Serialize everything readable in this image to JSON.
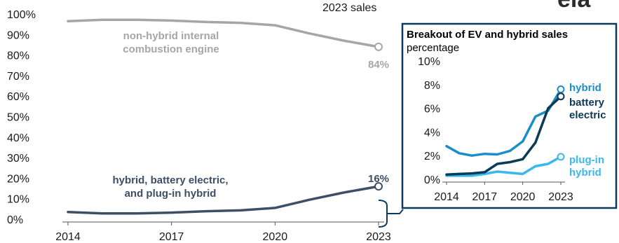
{
  "header": {
    "sales_label": "2023 sales",
    "logo_text": "eia"
  },
  "chart_data": [
    {
      "type": "line",
      "title": "",
      "xlabel": "",
      "ylabel": "",
      "x": [
        2014,
        2015,
        2016,
        2017,
        2018,
        2019,
        2020,
        2021,
        2022,
        2023
      ],
      "x_ticks": [
        "2014",
        "2017",
        "2020",
        "2023"
      ],
      "y_ticks": [
        "0%",
        "10%",
        "20%",
        "30%",
        "40%",
        "50%",
        "60%",
        "70%",
        "80%",
        "90%",
        "100%"
      ],
      "ylim": [
        0,
        100
      ],
      "grid": false,
      "series": [
        {
          "name": "non-hybrid internal combustion engine",
          "label_lines": [
            "non-hybrid internal",
            "combustion engine"
          ],
          "color": "#a6a6a6",
          "values": [
            96.5,
            97.2,
            97.2,
            96.8,
            96.1,
            95.7,
            94.5,
            90.5,
            87.0,
            84.0
          ],
          "end_label": "84%"
        },
        {
          "name": "hybrid, battery electric, and plug-in hybrid",
          "label_lines": [
            "hybrid, battery electric,",
            "and plug-in hybrid"
          ],
          "color": "#3d4f66",
          "values": [
            3.5,
            2.8,
            2.8,
            3.2,
            3.9,
            4.3,
            5.5,
            9.5,
            13.0,
            16.0
          ],
          "end_label": "16%"
        }
      ]
    },
    {
      "type": "line",
      "title": "Breakout of EV and hybrid sales",
      "ylabel": "percentage",
      "xlabel": "",
      "x": [
        2014,
        2015,
        2016,
        2017,
        2018,
        2019,
        2020,
        2021,
        2022,
        2023
      ],
      "x_ticks": [
        "2014",
        "2017",
        "2020",
        "2023"
      ],
      "y_ticks": [
        "0%",
        "2%",
        "4%",
        "6%",
        "8%",
        "10%"
      ],
      "ylim": [
        0,
        10
      ],
      "grid": false,
      "series": [
        {
          "name": "hybrid",
          "label_lines": [
            "hybrid"
          ],
          "color": "#1b8dc8",
          "values": [
            2.8,
            2.2,
            2.0,
            2.15,
            2.1,
            2.4,
            3.2,
            5.3,
            5.8,
            7.6
          ]
        },
        {
          "name": "battery electric",
          "label_lines": [
            "battery",
            "electric"
          ],
          "color": "#0b3a57",
          "values": [
            0.4,
            0.45,
            0.5,
            0.6,
            1.3,
            1.45,
            1.7,
            3.1,
            6.0,
            7.0
          ]
        },
        {
          "name": "plug-in hybrid",
          "label_lines": [
            "plug-in",
            "hybrid"
          ],
          "color": "#3ab8ec",
          "values": [
            0.3,
            0.3,
            0.3,
            0.45,
            0.65,
            0.55,
            0.45,
            1.1,
            1.3,
            1.9
          ]
        }
      ]
    }
  ]
}
